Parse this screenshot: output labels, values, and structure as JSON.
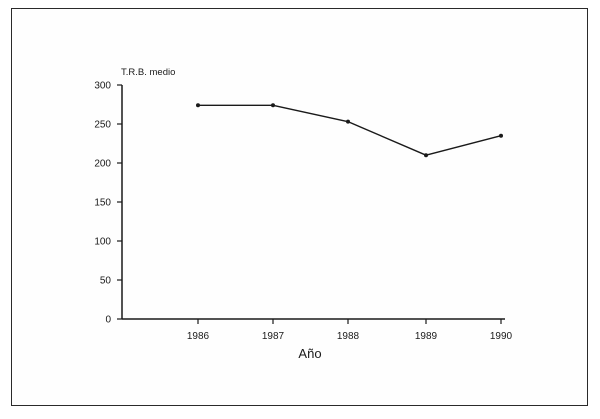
{
  "chart_data": {
    "type": "line",
    "title": "",
    "ylabel": "T.R.B. medio",
    "xlabel": "Año",
    "categories": [
      "1986",
      "1987",
      "1988",
      "1989",
      "1990"
    ],
    "series": [
      {
        "values": [
          274,
          274,
          253,
          210,
          235
        ]
      }
    ],
    "ylim": [
      0,
      300
    ],
    "yticks": [
      0,
      50,
      100,
      150,
      200,
      250,
      300
    ],
    "grid": false,
    "legend": "none"
  }
}
